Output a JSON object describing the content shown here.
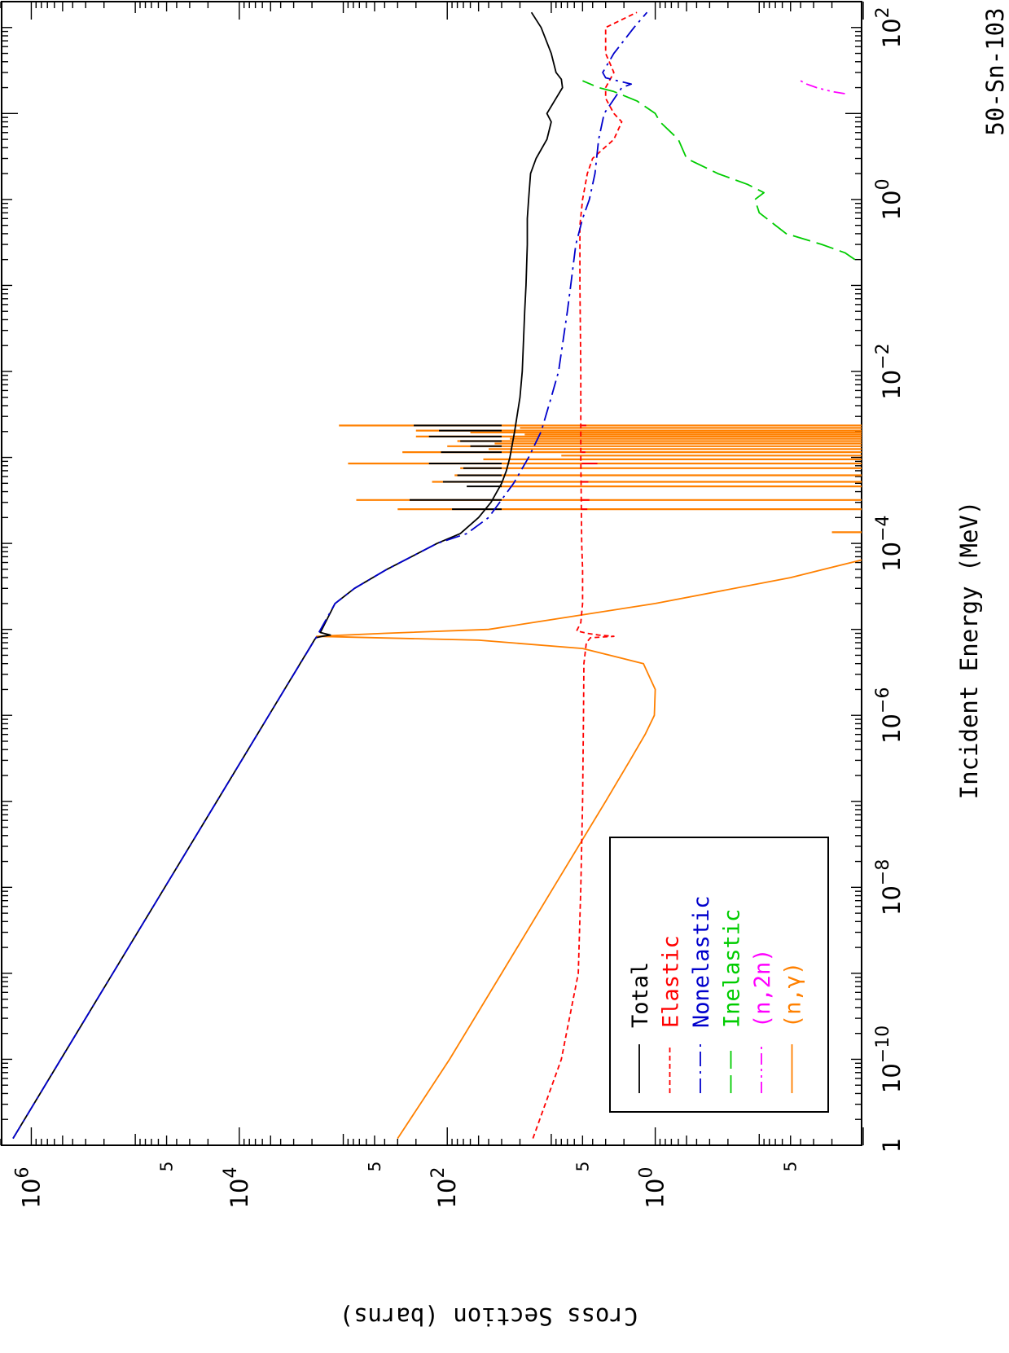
{
  "chart_data": {
    "type": "line",
    "title": "50-Sn-103",
    "xlabel": "Incident Energy (MeV)",
    "ylabel": "Cross Section (barns)",
    "x_scale": "log",
    "y_scale": "log",
    "xlim": [
      1e-11,
      200
    ],
    "ylim": [
      0.01,
      2000000
    ],
    "x_ticks": [
      {
        "value": 1e-11,
        "label": "1"
      },
      {
        "value": 1e-10,
        "label": "10",
        "exp": "−10"
      },
      {
        "value": 1e-08,
        "label": "10",
        "exp": "−8"
      },
      {
        "value": 1e-06,
        "label": "10",
        "exp": "−6"
      },
      {
        "value": 0.0001,
        "label": "10",
        "exp": "−4"
      },
      {
        "value": 0.01,
        "label": "10",
        "exp": "−2"
      },
      {
        "value": 1,
        "label": "10",
        "exp": "0"
      },
      {
        "value": 100,
        "label": "10",
        "exp": "2"
      }
    ],
    "y_ticks": [
      {
        "value": 1,
        "label": "10",
        "exp": "0"
      },
      {
        "value": 100,
        "label": "10",
        "exp": "2"
      },
      {
        "value": 10000,
        "label": "10",
        "exp": "4"
      },
      {
        "value": 1000000,
        "label": "10",
        "exp": "6"
      }
    ],
    "y_minor_labels": [
      {
        "value": 0.05,
        "label": "5"
      },
      {
        "value": 5,
        "label": "5"
      },
      {
        "value": 500,
        "label": "5"
      },
      {
        "value": 50000,
        "label": "5"
      }
    ],
    "legend": {
      "position": "lower-left",
      "entries": [
        {
          "name": "Total",
          "color": "#000000",
          "dash": "solid"
        },
        {
          "name": "Elastic",
          "color": "#ff0000",
          "dash": "short-dash"
        },
        {
          "name": "Nonelastic",
          "color": "#0000cc",
          "dash": "long-dash-dot"
        },
        {
          "name": "Inelastic",
          "color": "#00cc00",
          "dash": "long-dash"
        },
        {
          "name": "(n,2n)",
          "color": "#ff00ff",
          "dash": "dash-dot-dot"
        },
        {
          "name": "(n,γ)",
          "color": "#ff8000",
          "dash": "solid"
        }
      ]
    },
    "series": [
      {
        "name": "Total",
        "color": "#000000",
        "x": [
          1.2e-11,
          1e-10,
          1e-08,
          1e-06,
          7.5e-06,
          8e-06,
          8.3e-06,
          8.6e-06,
          9.2e-06,
          2e-05,
          3e-05,
          5e-05,
          0.0001,
          0.00013,
          0.0002,
          0.0003,
          0.0005,
          0.0007,
          0.001,
          0.002,
          0.005,
          0.01,
          0.05,
          0.1,
          0.3,
          0.6,
          1,
          2,
          3,
          5,
          8,
          10,
          15,
          20,
          25,
          30,
          50,
          100,
          150
        ],
        "y": [
          1500000,
          520000,
          52000,
          5200,
          1900,
          1830,
          1600,
          1330,
          1660,
          1200,
          780,
          380,
          125,
          75,
          50,
          38,
          30,
          27,
          25,
          22.5,
          20,
          19,
          18,
          17.5,
          17,
          17,
          16.5,
          15.8,
          14,
          11,
          10,
          11,
          9,
          7.8,
          8,
          9,
          10,
          12.5,
          15.5
        ]
      },
      {
        "name": "Elastic",
        "color": "#ff0000",
        "x": [
          1.2e-11,
          1e-10,
          1e-09,
          1e-08,
          1e-07,
          1e-06,
          4e-06,
          7e-06,
          8e-06,
          8.3e-06,
          8.6e-06,
          9e-06,
          9.6e-06,
          1.2e-05,
          2e-05,
          5e-05,
          0.0001,
          0.001,
          0.01,
          0.1,
          0.5,
          1,
          2,
          3,
          5,
          8,
          10,
          15,
          20,
          30,
          50,
          100,
          150
        ],
        "y": [
          15,
          8,
          5.5,
          5.2,
          5,
          4.9,
          4.85,
          4.6,
          4.2,
          2.5,
          3.5,
          4.5,
          5.7,
          5.2,
          5,
          5,
          5.1,
          5.2,
          5.2,
          5.3,
          5.3,
          5,
          4.5,
          4,
          2.5,
          2.1,
          2.5,
          3,
          3,
          2.5,
          3,
          3,
          1.5
        ]
      },
      {
        "name": "Nonelastic",
        "color": "#0000cc",
        "x": [
          1.2e-11,
          1e-10,
          1e-08,
          1e-06,
          8e-06,
          2e-05,
          3e-05,
          5e-05,
          0.0001,
          0.00013,
          0.0002,
          0.0005,
          0.001,
          0.002,
          0.005,
          0.01,
          0.05,
          0.1,
          0.3,
          0.6,
          1,
          2,
          5,
          10,
          20,
          22,
          24,
          26,
          30,
          50,
          100,
          150
        ],
        "y": [
          1500000,
          520000,
          52000,
          5200,
          1830,
          1200,
          780,
          380,
          125,
          65,
          40,
          23,
          16.5,
          12.5,
          10,
          8.5,
          7,
          6.5,
          5.8,
          5,
          4.3,
          3.8,
          3.5,
          3.1,
          2.1,
          1.7,
          2.3,
          3,
          3.2,
          2.5,
          1.6,
          1.2
        ]
      },
      {
        "name": "Inelastic",
        "color": "#00cc00",
        "x": [
          0.2,
          0.24,
          0.3,
          0.4,
          0.7,
          1,
          1.2,
          1.5,
          2,
          3,
          5,
          8,
          10,
          14,
          18,
          20,
          24
        ],
        "y": [
          0.012,
          0.015,
          0.025,
          0.055,
          0.1,
          0.11,
          0.09,
          0.13,
          0.25,
          0.5,
          0.6,
          0.9,
          1.0,
          1.5,
          2.5,
          3.5,
          5.0
        ]
      },
      {
        "name": "(n,2n)",
        "color": "#ff00ff",
        "x": [
          17,
          18,
          20,
          22,
          24
        ],
        "y": [
          0.015,
          0.02,
          0.028,
          0.035,
          0.04
        ]
      },
      {
        "name": "(n,γ)",
        "color": "#ff8000",
        "x": [
          1.2e-11,
          1e-10,
          1e-09,
          1e-08,
          1e-07,
          3e-07,
          6e-07,
          1e-06,
          2e-06,
          4e-06,
          6e-06,
          7.5e-06,
          8.3e-06,
          9e-06,
          1e-05,
          2e-05,
          4e-05,
          6.5e-05
        ],
        "y": [
          300,
          95,
          30,
          9.5,
          3,
          1.75,
          1.25,
          1.02,
          1.0,
          1.3,
          5,
          50,
          1800,
          400,
          40,
          1,
          0.05,
          0.01
        ]
      },
      {
        "name": "(n,γ) resonances",
        "color": "#ff8000",
        "kind": "spikes",
        "x": [
          0.000135,
          0.00025,
          0.00032,
          0.00046,
          0.00052,
          0.00062,
          0.00075,
          0.00085,
          0.00095,
          0.00105,
          0.00115,
          0.00125,
          0.00135,
          0.00145,
          0.00155,
          0.00165,
          0.00175,
          0.00185,
          0.00195,
          0.00205,
          0.0022,
          0.00235
        ],
        "y": [
          0.02,
          300,
          750,
          32,
          140,
          85,
          75,
          900,
          45,
          8,
          270,
          40,
          100,
          35,
          80,
          25,
          200,
          18,
          60,
          200,
          20,
          1100
        ]
      },
      {
        "name": "Total resonances",
        "color": "#000000",
        "kind": "spikes",
        "x": [
          0.00025,
          0.00032,
          0.00046,
          0.00052,
          0.00062,
          0.00075,
          0.00085,
          0.00115,
          0.00135,
          0.00155,
          0.00175,
          0.00205,
          0.00235
        ],
        "y": [
          90,
          230,
          65,
          110,
          80,
          70,
          150,
          115,
          60,
          75,
          150,
          120,
          210
        ]
      },
      {
        "name": "Elastic resonances",
        "color": "#ff0000",
        "kind": "dips",
        "x": [
          0.00025,
          0.00032,
          0.00052,
          0.00085,
          0.00115,
          0.00235
        ],
        "y": [
          4.5,
          4.3,
          4.4,
          3.6,
          4.7,
          4.6
        ]
      }
    ]
  }
}
